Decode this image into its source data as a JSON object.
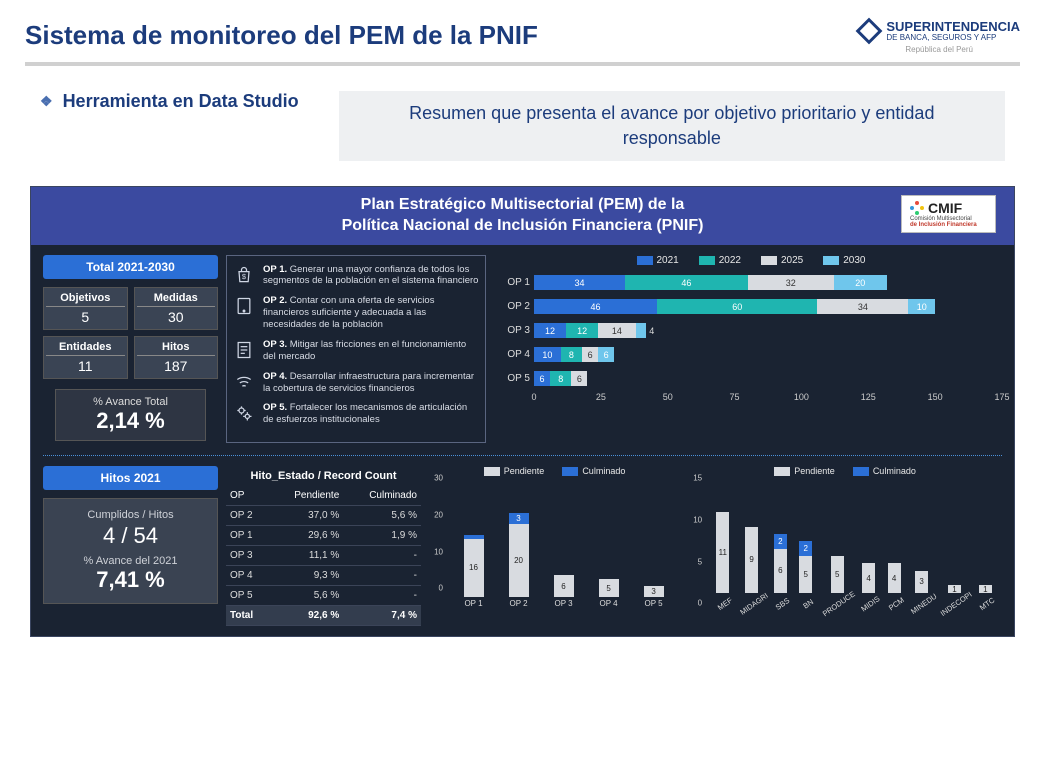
{
  "colors": {
    "navy": "#1c3c7c",
    "dashbg": "#1a2332",
    "header": "#3b4aa0",
    "pill": "#2b6fd6",
    "c2021": "#2b6fd6",
    "c2022": "#1fb5b0",
    "c2025": "#d8dbe0",
    "c2030": "#4fb7e8",
    "pendiente": "#d8dbe0",
    "culminado": "#2b6fd6"
  },
  "page": {
    "title": "Sistema de monitoreo del PEM de la PNIF",
    "logo_main": "SUPERINTENDENCIA",
    "logo_sub": "DE BANCA, SEGUROS Y AFP",
    "logo_country": "República del Perú",
    "bullet": "Herramienta en Data Studio",
    "resume": "Resumen que presenta el avance por objetivo prioritario y entidad responsable"
  },
  "dash": {
    "title_l1": "Plan Estratégico Multisectorial (PEM) de la",
    "title_l2": "Política Nacional de Inclusión Financiera (PNIF)",
    "cmif": {
      "name": "CMIF",
      "sub1": "Comisión Multisectorial",
      "sub2": "de Inclusión Financiera"
    }
  },
  "summary": {
    "period": "Total 2021-2030",
    "stats": [
      {
        "label": "Objetivos",
        "value": "5"
      },
      {
        "label": "Medidas",
        "value": "30"
      },
      {
        "label": "Entidades",
        "value": "11"
      },
      {
        "label": "Hitos",
        "value": "187"
      }
    ],
    "avance_lbl": "% Avance Total",
    "avance_val": "2,14 %"
  },
  "ops": [
    {
      "bold": "OP 1.",
      "text": " Generar una mayor confianza de todos los segmentos de la población en el sistema financiero",
      "icon": "bag"
    },
    {
      "bold": "OP 2.",
      "text": " Contar con una oferta de servicios financieros suficiente y adecuada a las necesidades de la población",
      "icon": "tablet"
    },
    {
      "bold": "OP 3.",
      "text": " Mitigar las fricciones en el funcionamiento del mercado",
      "icon": "doc"
    },
    {
      "bold": "OP 4.",
      "text": " Desarrollar infraestructura para incrementar la cobertura de servicios financieros",
      "icon": "wifi"
    },
    {
      "bold": "OP 5.",
      "text": " Fortalecer los mecanismos de articulación de esfuerzos institucionales",
      "icon": "gears"
    }
  ],
  "sbar": {
    "legend": [
      {
        "label": "2021",
        "color": "#2b6fd6"
      },
      {
        "label": "2022",
        "color": "#1fb5b0"
      },
      {
        "label": "2025",
        "color": "#d8dbe0"
      },
      {
        "label": "2030",
        "color": "#6fc6ec"
      }
    ],
    "xmax": 175,
    "xticks": [
      0,
      25,
      50,
      75,
      100,
      125,
      150,
      175
    ],
    "rows": [
      {
        "label": "OP 1",
        "segs": [
          {
            "v": 34,
            "c": "#2b6fd6"
          },
          {
            "v": 46,
            "c": "#1fb5b0"
          },
          {
            "v": 32,
            "c": "#d8dbe0",
            "txtc": "#333"
          },
          {
            "v": 20,
            "c": "#6fc6ec"
          }
        ]
      },
      {
        "label": "OP 2",
        "segs": [
          {
            "v": 46,
            "c": "#2b6fd6"
          },
          {
            "v": 60,
            "c": "#1fb5b0"
          },
          {
            "v": 34,
            "c": "#d8dbe0",
            "txtc": "#333"
          },
          {
            "v": 10,
            "c": "#6fc6ec"
          }
        ]
      },
      {
        "label": "OP 3",
        "segs": [
          {
            "v": 12,
            "c": "#2b6fd6"
          },
          {
            "v": 12,
            "c": "#1fb5b0"
          },
          {
            "v": 14,
            "c": "#d8dbe0",
            "txtc": "#333"
          },
          {
            "v": 4,
            "c": "#6fc6ec",
            "out": true
          }
        ]
      },
      {
        "label": "OP 4",
        "segs": [
          {
            "v": 10,
            "c": "#2b6fd6"
          },
          {
            "v": 8,
            "c": "#1fb5b0"
          },
          {
            "v": 6,
            "c": "#d8dbe0",
            "txtc": "#333"
          },
          {
            "v": 6,
            "c": "#6fc6ec"
          }
        ]
      },
      {
        "label": "OP 5",
        "segs": [
          {
            "v": 6,
            "c": "#2b6fd6"
          },
          {
            "v": 8,
            "c": "#1fb5b0"
          },
          {
            "v": 6,
            "c": "#d8dbe0",
            "txtc": "#333"
          }
        ]
      }
    ]
  },
  "hitos": {
    "pill": "Hitos 2021",
    "l1": "Cumplidos /  Hitos",
    "v1": "4  /  54",
    "l2": "% Avance del 2021",
    "v2": "7,41 %"
  },
  "table": {
    "title": "Hito_Estado / Record Count",
    "headers": [
      "OP",
      "Pendiente",
      "Culminado"
    ],
    "rows": [
      [
        "OP 2",
        "37,0 %",
        "5,6 %"
      ],
      [
        "OP 1",
        "29,6 %",
        "1,9 %"
      ],
      [
        "OP 3",
        "11,1 %",
        "-"
      ],
      [
        "OP 4",
        "9,3 %",
        "-"
      ],
      [
        "OP 5",
        "5,6 %",
        "-"
      ]
    ],
    "total": [
      "Total",
      "92,6 %",
      "7,4 %"
    ]
  },
  "chart_op": {
    "legend": [
      {
        "label": "Pendiente",
        "color": "#d8dbe0"
      },
      {
        "label": "Culminado",
        "color": "#2b6fd6"
      }
    ],
    "ymax": 30,
    "yticks": [
      0,
      10,
      20,
      30
    ],
    "bars": [
      {
        "label": "OP 1",
        "pend": 16,
        "cul": 1,
        "cul_lbl": ""
      },
      {
        "label": "OP 2",
        "pend": 20,
        "cul": 3,
        "cul_lbl": "3"
      },
      {
        "label": "OP 3",
        "pend": 6,
        "cul": 0
      },
      {
        "label": "OP 4",
        "pend": 5,
        "cul": 0
      },
      {
        "label": "OP 5",
        "pend": 3,
        "cul": 0
      }
    ]
  },
  "chart_ent": {
    "legend": [
      {
        "label": "Pendiente",
        "color": "#d8dbe0"
      },
      {
        "label": "Culminado",
        "color": "#2b6fd6"
      }
    ],
    "ymax": 15,
    "yticks": [
      0,
      5,
      10,
      15
    ],
    "bars": [
      {
        "label": "MEF",
        "pend": 11,
        "cul": 0
      },
      {
        "label": "MIDAGRI",
        "pend": 9,
        "cul": 0
      },
      {
        "label": "SBS",
        "pend": 6,
        "cul": 2,
        "cul_lbl": "2"
      },
      {
        "label": "BN",
        "pend": 5,
        "cul": 2,
        "cul_lbl": "2"
      },
      {
        "label": "PRODUCE",
        "pend": 5,
        "cul": 0
      },
      {
        "label": "MIDIS",
        "pend": 4,
        "cul": 0
      },
      {
        "label": "PCM",
        "pend": 4,
        "cul": 0
      },
      {
        "label": "MINEDU",
        "pend": 3,
        "cul": 0
      },
      {
        "label": "INDECOPI",
        "pend": 1,
        "cul": 0
      },
      {
        "label": "MTC",
        "pend": 1,
        "cul": 0
      }
    ]
  }
}
